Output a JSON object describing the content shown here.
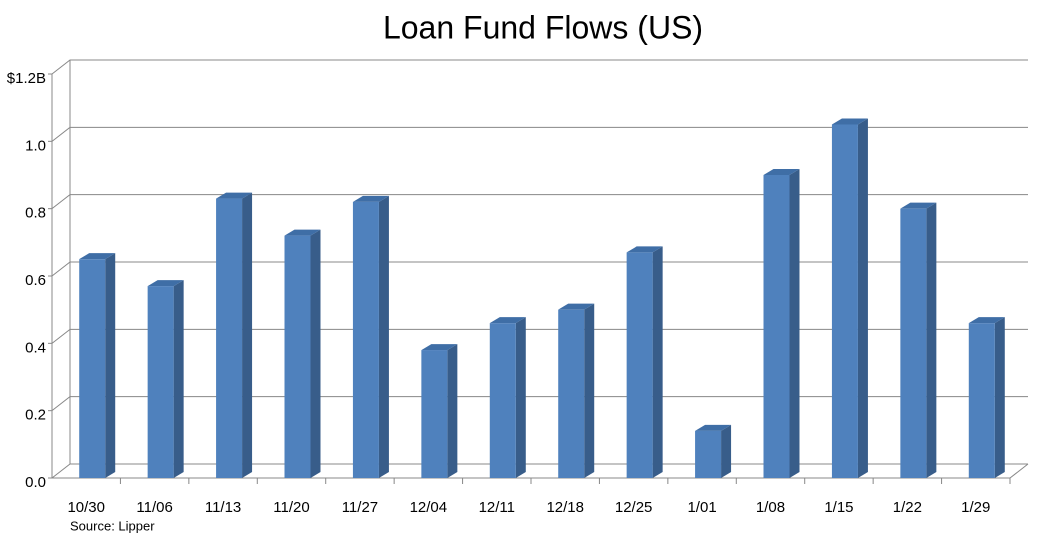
{
  "chart_data": {
    "type": "bar",
    "title": "Loan Fund Flows (US)",
    "source": "Source: Lipper",
    "categories": [
      "10/30",
      "11/06",
      "11/13",
      "11/20",
      "11/27",
      "12/04",
      "12/11",
      "12/18",
      "12/25",
      "1/01",
      "1/08",
      "1/15",
      "1/22",
      "1/29"
    ],
    "values": [
      0.65,
      0.57,
      0.83,
      0.72,
      0.82,
      0.38,
      0.46,
      0.5,
      0.67,
      0.14,
      0.9,
      1.05,
      0.8,
      0.46
    ],
    "color": "#4f81bd",
    "ylim": [
      0,
      1.2
    ],
    "yticks": [
      {
        "value": 0,
        "label": "0.0"
      },
      0.2,
      0.4,
      0.6,
      0.8,
      {
        "value": 1,
        "label": "1.0"
      },
      {
        "value": 1.2,
        "label": "$1.2B"
      }
    ],
    "grid": true
  }
}
